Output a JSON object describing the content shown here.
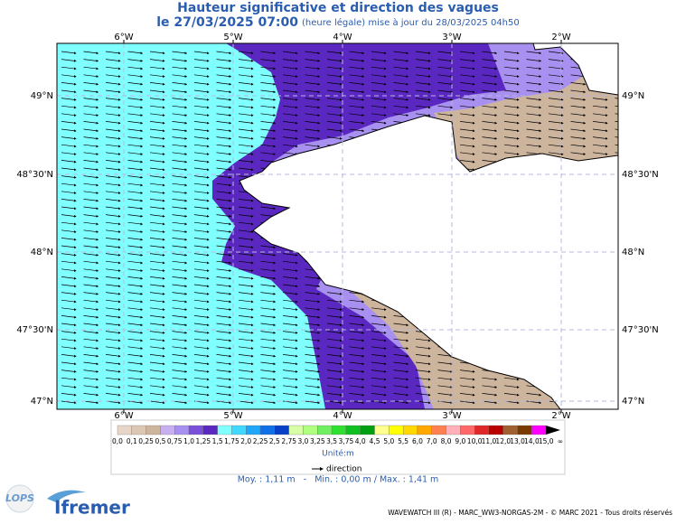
{
  "header": {
    "title": "Hauteur significative et direction des vagues",
    "date": "le 27/03/2025 07:00",
    "subtitle": "(heure légale) mise à jour du 28/03/2025 04h50"
  },
  "map": {
    "lon_labels": [
      "6°W",
      "5°W",
      "4°W",
      "3°W",
      "2°W"
    ],
    "lat_labels": [
      "49°N",
      "48°30'N",
      "48°N",
      "47°30'N",
      "47°N"
    ]
  },
  "legend": {
    "labels": [
      "0,0",
      "0,1",
      "0,25",
      "0,5",
      "0,75",
      "1,0",
      "1,25",
      "1,5",
      "1,75",
      "2,0",
      "2,25",
      "2,5",
      "2,75",
      "3,0",
      "3,25",
      "3,5",
      "3,75",
      "4,0",
      "4,5",
      "5,0",
      "5,5",
      "6,0",
      "7,0",
      "8,0",
      "9,0",
      "10,0",
      "11,0",
      "12,0",
      "13,0",
      "14,0",
      "15,0",
      "∞"
    ],
    "colors": [
      "#e8d5c8",
      "#dcc6b4",
      "#cdb49c",
      "#c8b0f0",
      "#a890f0",
      "#7a50d8",
      "#5a28c0",
      "#80ffff",
      "#40d8ff",
      "#20a8f8",
      "#1070e8",
      "#0840c8",
      "#d8ffa8",
      "#b0ff80",
      "#70f060",
      "#30e030",
      "#10c020",
      "#00a010",
      "#ffff90",
      "#ffff00",
      "#ffd800",
      "#ffa800",
      "#ff8050",
      "#ffb0b8",
      "#ff6868",
      "#e02828",
      "#b80000",
      "#a06030",
      "#7a3a00",
      "#ff00ff",
      "#000000"
    ],
    "unit": "Unité:m",
    "direction": "direction"
  },
  "stats": "Moy. : 1,11 m   -   Min. : 0,00 m / Max. : 1,41 m",
  "logos": {
    "left": "LOPS",
    "right": "Ifremer"
  },
  "footer": "WAVEWATCH III (R) - MARC_WW3-NORGAS-2M - © MARC 2021 - Tous droits réservés"
}
